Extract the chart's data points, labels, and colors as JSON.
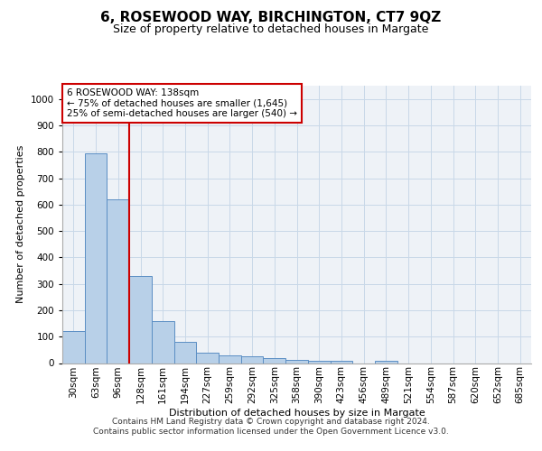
{
  "title": "6, ROSEWOOD WAY, BIRCHINGTON, CT7 9QZ",
  "subtitle": "Size of property relative to detached houses in Margate",
  "xlabel": "Distribution of detached houses by size in Margate",
  "ylabel": "Number of detached properties",
  "categories": [
    "30sqm",
    "63sqm",
    "96sqm",
    "128sqm",
    "161sqm",
    "194sqm",
    "227sqm",
    "259sqm",
    "292sqm",
    "325sqm",
    "358sqm",
    "390sqm",
    "423sqm",
    "456sqm",
    "489sqm",
    "521sqm",
    "554sqm",
    "587sqm",
    "620sqm",
    "652sqm",
    "685sqm"
  ],
  "values": [
    122,
    795,
    620,
    328,
    160,
    80,
    38,
    28,
    26,
    18,
    12,
    8,
    10,
    0,
    8,
    0,
    0,
    0,
    0,
    0,
    0
  ],
  "bar_color": "#b8d0e8",
  "bar_edge_color": "#5b8ec4",
  "vline_color": "#cc0000",
  "annotation_text": "6 ROSEWOOD WAY: 138sqm\n← 75% of detached houses are smaller (1,645)\n25% of semi-detached houses are larger (540) →",
  "annotation_box_facecolor": "#ffffff",
  "annotation_box_edgecolor": "#cc0000",
  "ylim": [
    0,
    1050
  ],
  "yticks": [
    0,
    100,
    200,
    300,
    400,
    500,
    600,
    700,
    800,
    900,
    1000
  ],
  "footer_line1": "Contains HM Land Registry data © Crown copyright and database right 2024.",
  "footer_line2": "Contains public sector information licensed under the Open Government Licence v3.0.",
  "grid_color": "#c8d8e8",
  "bg_color": "#eef2f7",
  "title_fontsize": 11,
  "subtitle_fontsize": 9,
  "ylabel_fontsize": 8,
  "xlabel_fontsize": 8,
  "tick_fontsize": 7.5,
  "footer_fontsize": 6.5,
  "annot_fontsize": 7.5
}
